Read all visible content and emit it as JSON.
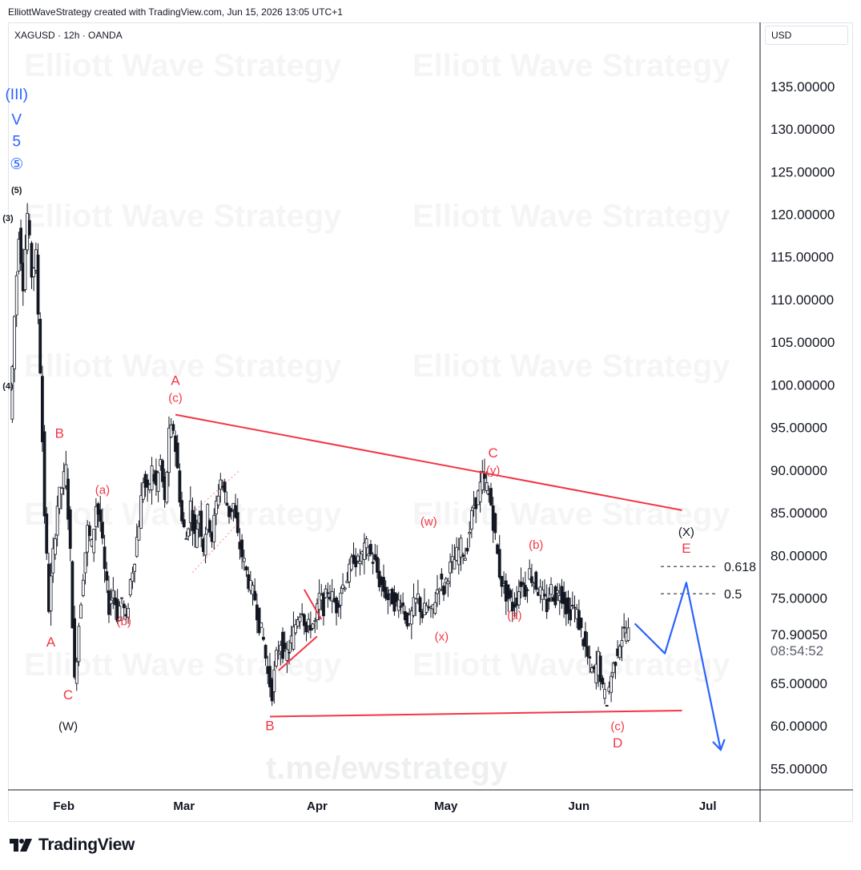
{
  "header": {
    "caption": "ElliottWaveStrategy created with TradingView.com, Jun 15, 2026 13:05 UTC+1",
    "symbol": "XAGUSD · 12h · OANDA",
    "currency": "USD"
  },
  "brand": {
    "name": "TradingView",
    "logo_icon": "tradingview-logo-icon"
  },
  "watermarks": {
    "repeat_text": "Elliott Wave Strategy",
    "link_text": "t.me/ewstrategy"
  },
  "colors": {
    "bull": "#131722",
    "bear": "#131722",
    "wave_red": "#f23645",
    "wave_blue": "#2962ff",
    "projection": "#2962ff"
  },
  "chart_data": {
    "type": "candlestick",
    "title": "XAGUSD · 12h · OANDA",
    "y_axis": {
      "label": "USD",
      "ticks": [
        "135.00000",
        "130.00000",
        "125.00000",
        "120.00000",
        "115.00000",
        "110.00000",
        "105.00000",
        "100.00000",
        "95.00000",
        "90.00000",
        "85.00000",
        "80.00000",
        "75.00000",
        "70.90050",
        "65.00000",
        "60.00000",
        "55.00000"
      ],
      "range": [
        52.5,
        142.5
      ]
    },
    "x_axis": {
      "ticks": [
        {
          "label": "Feb",
          "date": "2026-02-01"
        },
        {
          "label": "Mar",
          "date": "2026-03-01"
        },
        {
          "label": "Apr",
          "date": "2026-04-01"
        },
        {
          "label": "May",
          "date": "2026-05-01"
        },
        {
          "label": "Jun",
          "date": "2026-06-01"
        },
        {
          "label": "Jul",
          "date": "2026-07-01"
        }
      ]
    },
    "last_price": {
      "value": 70.9005,
      "label": "70.90050",
      "countdown": "08:54:52"
    },
    "price_path": [
      [
        "2026-01-20",
        96
      ],
      [
        "2026-01-21",
        108
      ],
      [
        "2026-01-22",
        118
      ],
      [
        "2026-01-23",
        112
      ],
      [
        "2026-01-24",
        120
      ],
      [
        "2026-01-25",
        113
      ],
      [
        "2026-01-26",
        115
      ],
      [
        "2026-01-27",
        102
      ],
      [
        "2026-01-28",
        85
      ],
      [
        "2026-01-29",
        74
      ],
      [
        "2026-01-30",
        80
      ],
      [
        "2026-01-31",
        86
      ],
      [
        "2026-02-01",
        88
      ],
      [
        "2026-02-02",
        90
      ],
      [
        "2026-02-03",
        80
      ],
      [
        "2026-02-04",
        65
      ],
      [
        "2026-02-05",
        72
      ],
      [
        "2026-02-06",
        78
      ],
      [
        "2026-02-07",
        83
      ],
      [
        "2026-02-08",
        81
      ],
      [
        "2026-02-09",
        86
      ],
      [
        "2026-02-10",
        84
      ],
      [
        "2026-02-11",
        78
      ],
      [
        "2026-02-12",
        74
      ],
      [
        "2026-02-13",
        76
      ],
      [
        "2026-02-14",
        73
      ],
      [
        "2026-02-15",
        75
      ],
      [
        "2026-02-16",
        72
      ],
      [
        "2026-02-17",
        77
      ],
      [
        "2026-02-18",
        80
      ],
      [
        "2026-02-19",
        84
      ],
      [
        "2026-02-20",
        89
      ],
      [
        "2026-02-21",
        87
      ],
      [
        "2026-02-22",
        90
      ],
      [
        "2026-02-23",
        88
      ],
      [
        "2026-02-24",
        91
      ],
      [
        "2026-02-25",
        86
      ],
      [
        "2026-02-26",
        94
      ],
      [
        "2026-02-27",
        95
      ],
      [
        "2026-02-28",
        90
      ],
      [
        "2026-03-01",
        84
      ],
      [
        "2026-03-02",
        82
      ],
      [
        "2026-03-03",
        86
      ],
      [
        "2026-03-04",
        82
      ],
      [
        "2026-03-05",
        85
      ],
      [
        "2026-03-06",
        81
      ],
      [
        "2026-03-07",
        85
      ],
      [
        "2026-03-08",
        82
      ],
      [
        "2026-03-09",
        86
      ],
      [
        "2026-03-10",
        89
      ],
      [
        "2026-03-11",
        87
      ],
      [
        "2026-03-12",
        85
      ],
      [
        "2026-03-13",
        86
      ],
      [
        "2026-03-14",
        82
      ],
      [
        "2026-03-15",
        80
      ],
      [
        "2026-03-16",
        78
      ],
      [
        "2026-03-17",
        76
      ],
      [
        "2026-03-18",
        75
      ],
      [
        "2026-03-19",
        72
      ],
      [
        "2026-03-20",
        70
      ],
      [
        "2026-03-21",
        66
      ],
      [
        "2026-03-22",
        64
      ],
      [
        "2026-03-23",
        68
      ],
      [
        "2026-03-24",
        70
      ],
      [
        "2026-03-25",
        68
      ],
      [
        "2026-03-26",
        69
      ],
      [
        "2026-03-27",
        71
      ],
      [
        "2026-03-28",
        73
      ],
      [
        "2026-03-29",
        74
      ],
      [
        "2026-03-30",
        71
      ],
      [
        "2026-03-31",
        72
      ],
      [
        "2026-04-01",
        72
      ],
      [
        "2026-04-02",
        75
      ],
      [
        "2026-04-03",
        74
      ],
      [
        "2026-04-04",
        76
      ],
      [
        "2026-04-05",
        75
      ],
      [
        "2026-04-06",
        74
      ],
      [
        "2026-04-07",
        76
      ],
      [
        "2026-04-08",
        77
      ],
      [
        "2026-04-09",
        78
      ],
      [
        "2026-04-10",
        80
      ],
      [
        "2026-04-11",
        79
      ],
      [
        "2026-04-12",
        80
      ],
      [
        "2026-04-13",
        81
      ],
      [
        "2026-04-14",
        80
      ],
      [
        "2026-04-15",
        79
      ],
      [
        "2026-04-16",
        77
      ],
      [
        "2026-04-17",
        76
      ],
      [
        "2026-04-18",
        75
      ],
      [
        "2026-04-19",
        75
      ],
      [
        "2026-04-20",
        74
      ],
      [
        "2026-04-21",
        75
      ],
      [
        "2026-04-22",
        73
      ],
      [
        "2026-04-23",
        72
      ],
      [
        "2026-04-24",
        74
      ],
      [
        "2026-04-25",
        75
      ],
      [
        "2026-04-26",
        73
      ],
      [
        "2026-04-27",
        74
      ],
      [
        "2026-04-28",
        73
      ],
      [
        "2026-04-29",
        75
      ],
      [
        "2026-04-30",
        77
      ],
      [
        "2026-05-01",
        76
      ],
      [
        "2026-05-02",
        78
      ],
      [
        "2026-05-03",
        79
      ],
      [
        "2026-05-04",
        80
      ],
      [
        "2026-05-05",
        81
      ],
      [
        "2026-05-06",
        80
      ],
      [
        "2026-05-07",
        83
      ],
      [
        "2026-05-08",
        86
      ],
      [
        "2026-05-09",
        87
      ],
      [
        "2026-05-10",
        89
      ],
      [
        "2026-05-11",
        88
      ],
      [
        "2026-05-12",
        86
      ],
      [
        "2026-05-13",
        82
      ],
      [
        "2026-05-14",
        78
      ],
      [
        "2026-05-15",
        76
      ],
      [
        "2026-05-16",
        75
      ],
      [
        "2026-05-17",
        74
      ],
      [
        "2026-05-18",
        75
      ],
      [
        "2026-05-19",
        77
      ],
      [
        "2026-05-20",
        76
      ],
      [
        "2026-05-21",
        78
      ],
      [
        "2026-05-22",
        77
      ],
      [
        "2026-05-23",
        76
      ],
      [
        "2026-05-24",
        75
      ],
      [
        "2026-05-25",
        74
      ],
      [
        "2026-05-26",
        76
      ],
      [
        "2026-05-27",
        75
      ],
      [
        "2026-05-28",
        76
      ],
      [
        "2026-05-29",
        75
      ],
      [
        "2026-05-30",
        73
      ],
      [
        "2026-05-31",
        74
      ],
      [
        "2026-06-01",
        73
      ],
      [
        "2026-06-02",
        71
      ],
      [
        "2026-06-03",
        69
      ],
      [
        "2026-06-04",
        67
      ],
      [
        "2026-06-05",
        66
      ],
      [
        "2026-06-06",
        68
      ],
      [
        "2026-06-07",
        64
      ],
      [
        "2026-06-08",
        63
      ],
      [
        "2026-06-09",
        66
      ],
      [
        "2026-06-10",
        68
      ],
      [
        "2026-06-11",
        70
      ],
      [
        "2026-06-12",
        71
      ],
      [
        "2026-06-13",
        70.9
      ]
    ],
    "trendlines": [
      {
        "name": "upper",
        "from": [
          "2026-02-27",
          96.5
        ],
        "to": [
          "2026-06-25",
          85.3
        ]
      },
      {
        "name": "lower",
        "from": [
          "2026-03-21",
          61.1
        ],
        "to": [
          "2026-06-25",
          61.8
        ]
      }
    ],
    "small_triangles": [
      {
        "points": [
          [
            "2026-03-23",
            66.5
          ],
          [
            "2026-04-01",
            70.5
          ]
        ]
      },
      {
        "points": [
          [
            "2026-03-29",
            76
          ],
          [
            "2026-04-02",
            72.5
          ]
        ]
      }
    ],
    "dotted_channel": [
      {
        "from": [
          "2026-03-03",
          78
        ],
        "to": [
          "2026-03-14",
          84
        ]
      },
      {
        "from": [
          "2026-03-03",
          85
        ],
        "to": [
          "2026-03-14",
          90
        ]
      }
    ],
    "fib_levels": [
      {
        "label": "0.618",
        "value": 78.7
      },
      {
        "label": "0.5",
        "value": 75.5
      }
    ],
    "projection": [
      [
        "2026-06-14",
        72
      ],
      [
        "2026-06-21",
        68.5
      ],
      [
        "2026-06-26",
        76.8
      ],
      [
        "2026-07-04",
        57.2
      ]
    ],
    "wave_labels": [
      {
        "text": "(III)",
        "date": "2026-01-21",
        "y": 133.5,
        "color": "blue"
      },
      {
        "text": "V",
        "date": "2026-01-21",
        "y": 130.5,
        "color": "blue"
      },
      {
        "text": "5",
        "date": "2026-01-21",
        "y": 128,
        "color": "blue"
      },
      {
        "text": "⑤",
        "date": "2026-01-21",
        "y": 125.3,
        "color": "blue"
      },
      {
        "text": "(5)",
        "date": "2026-01-21",
        "y": 122.5,
        "color": "black"
      },
      {
        "text": "(3)",
        "date": "2026-01-19",
        "y": 119.2,
        "color": "black"
      },
      {
        "text": "(4)",
        "date": "2026-01-19",
        "y": 99.5,
        "color": "black"
      },
      {
        "text": "B",
        "date": "2026-01-31",
        "y": 93.8,
        "color": "red"
      },
      {
        "text": "A",
        "date": "2026-01-29",
        "y": 69.3,
        "color": "red"
      },
      {
        "text": "C",
        "date": "2026-02-02",
        "y": 63.1,
        "color": "red"
      },
      {
        "text": "(W)",
        "date": "2026-02-02",
        "y": 59.5,
        "color": "black"
      },
      {
        "text": "(a)",
        "date": "2026-02-10",
        "y": 87.2,
        "color": "red"
      },
      {
        "text": "(b)",
        "date": "2026-02-15",
        "y": 71.8,
        "color": "red"
      },
      {
        "text": "A",
        "date": "2026-02-27",
        "y": 100,
        "color": "red"
      },
      {
        "text": "(c)",
        "date": "2026-02-27",
        "y": 98,
        "color": "red"
      },
      {
        "text": "B",
        "date": "2026-03-21",
        "y": 59.5,
        "color": "red"
      },
      {
        "text": "(w)",
        "date": "2026-04-27",
        "y": 83.5,
        "color": "red"
      },
      {
        "text": "(x)",
        "date": "2026-04-30",
        "y": 70,
        "color": "red"
      },
      {
        "text": "C",
        "date": "2026-05-12",
        "y": 91.5,
        "color": "red"
      },
      {
        "text": "(y)",
        "date": "2026-05-12",
        "y": 89.5,
        "color": "red"
      },
      {
        "text": "(b)",
        "date": "2026-05-22",
        "y": 80.8,
        "color": "red"
      },
      {
        "text": "(a)",
        "date": "2026-05-17",
        "y": 72.5,
        "color": "red"
      },
      {
        "text": "(c)",
        "date": "2026-06-10",
        "y": 59.5,
        "color": "red"
      },
      {
        "text": "D",
        "date": "2026-06-10",
        "y": 57.5,
        "color": "red"
      },
      {
        "text": "(X)",
        "date": "2026-06-26",
        "y": 82.3,
        "color": "black"
      },
      {
        "text": "E",
        "date": "2026-06-26",
        "y": 80.3,
        "color": "red"
      }
    ]
  }
}
